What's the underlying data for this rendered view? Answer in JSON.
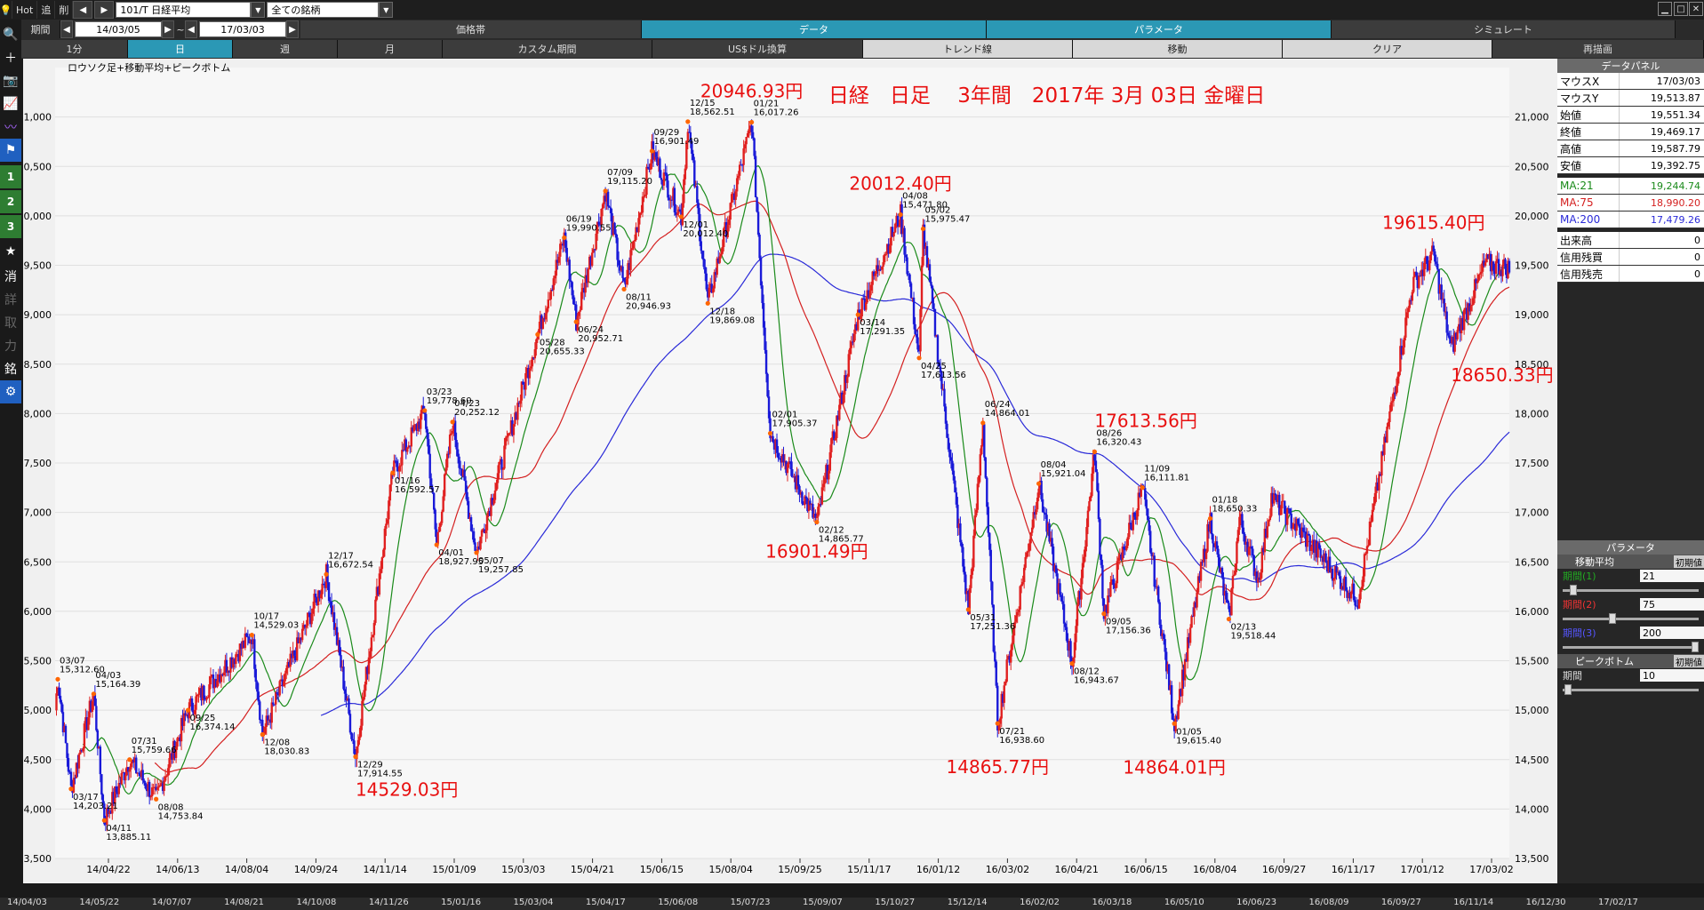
{
  "toolbar": {
    "hot": "Hot",
    "tsui": "追",
    "sakujo": "削",
    "symbol": "101/T 日経平均",
    "universe": "全ての銘柄"
  },
  "date_bar": {
    "period_label": "期間",
    "from": "14/03/05",
    "tilde": "~",
    "to": "17/03/03",
    "tabs": [
      "価格帯",
      "データ",
      "パラメータ",
      "シミュレート"
    ]
  },
  "period_bar": {
    "tabs": [
      "1分",
      "日",
      "週",
      "月",
      "カスタム期間",
      "US$ドル換算",
      "トレンド線",
      "移動",
      "クリア",
      "再描画"
    ]
  },
  "left_bar": {
    "nums": [
      "1",
      "2",
      "3"
    ],
    "kanji": [
      "消",
      "詳",
      "取",
      "力",
      "銘"
    ]
  },
  "colors": {
    "ma21": "#1a8a1a",
    "ma75": "#d42020",
    "ma200": "#2a2ad8",
    "up_candle": "#e02020",
    "down_candle": "#1a1ad8",
    "annotation": "#e81010",
    "peak_dot": "#ff6600"
  },
  "chart_title_small": "ロウソク足+移動平均+ピークボトム",
  "annotation_title": "日経　日足　 3年間　2017年 3月 03日 金曜日",
  "chart_data": {
    "type": "line",
    "y_range": [
      13500,
      21500
    ],
    "yticks": [
      "21,000",
      "20,500",
      "20,000",
      "19,500",
      "19,000",
      "18,500",
      "18,000",
      "17,500",
      "17,000",
      "16,500",
      "16,000",
      "15,500",
      "15,000",
      "14,500",
      "14,000",
      "13,500"
    ],
    "ytick_values": [
      21000,
      20500,
      20000,
      19500,
      19000,
      18500,
      18000,
      17500,
      17000,
      16500,
      16000,
      15500,
      15000,
      14500,
      14000,
      13500
    ],
    "xticks": [
      "14/04/22",
      "14/06/13",
      "14/08/04",
      "14/09/24",
      "14/11/14",
      "15/01/09",
      "15/03/03",
      "15/04/21",
      "15/06/15",
      "15/08/04",
      "15/09/25",
      "15/11/17",
      "16/01/12",
      "16/03/02",
      "16/04/21",
      "16/06/15",
      "16/08/04",
      "16/09/27",
      "16/11/17",
      "17/01/12",
      "17/03/02"
    ],
    "price_path": [
      [
        "14/03/05",
        15000
      ],
      [
        "14/03/07",
        15312.6
      ],
      [
        "14/03/17",
        14203.21
      ],
      [
        "14/04/03",
        15164.39
      ],
      [
        "14/04/11",
        13885.11
      ],
      [
        "14/04/30",
        14500
      ],
      [
        "14/05/20",
        14100
      ],
      [
        "14/06/13",
        15000
      ],
      [
        "14/07/31",
        15759.66
      ],
      [
        "14/08/08",
        14753.84
      ],
      [
        "14/09/25",
        16374.14
      ],
      [
        "14/10/17",
        14529.03
      ],
      [
        "14/11/14",
        17400
      ],
      [
        "14/12/08",
        18030.83
      ],
      [
        "14/12/17",
        16672.54
      ],
      [
        "14/12/29",
        17914.55
      ],
      [
        "15/01/16",
        16592.57
      ],
      [
        "15/03/03",
        18800
      ],
      [
        "15/03/23",
        19778.6
      ],
      [
        "15/04/01",
        18927.95
      ],
      [
        "15/04/23",
        20252.12
      ],
      [
        "15/05/07",
        19257.85
      ],
      [
        "15/05/28",
        20655.33
      ],
      [
        "15/06/19",
        19990.55
      ],
      [
        "15/06/24",
        20952.71
      ],
      [
        "15/07/09",
        19115.2
      ],
      [
        "15/08/11",
        20946.93
      ],
      [
        "15/08/25",
        17800
      ],
      [
        "15/09/29",
        16901.49
      ],
      [
        "15/10/30",
        19000
      ],
      [
        "15/12/01",
        20012.4
      ],
      [
        "15/12/15",
        18562.51
      ],
      [
        "15/12/18",
        19869.08
      ],
      [
        "16/01/21",
        16017.26
      ],
      [
        "16/02/01",
        17905.37
      ],
      [
        "16/02/12",
        14865.77
      ],
      [
        "16/03/14",
        17291.35
      ],
      [
        "16/04/08",
        15471.8
      ],
      [
        "16/04/25",
        17613.56
      ],
      [
        "16/05/02",
        15975.47
      ],
      [
        "16/05/31",
        17251.36
      ],
      [
        "16/06/24",
        14864.01
      ],
      [
        "16/07/21",
        16938.6
      ],
      [
        "16/08/04",
        15921.04
      ],
      [
        "16/08/12",
        16943.67
      ],
      [
        "16/08/26",
        16320.43
      ],
      [
        "16/09/05",
        17156.36
      ],
      [
        "16/11/09",
        16111.81
      ],
      [
        "16/12/20",
        19300
      ],
      [
        "17/01/05",
        19615.4
      ],
      [
        "17/01/18",
        18650.33
      ],
      [
        "17/02/13",
        19518.44
      ],
      [
        "17/03/03",
        19469.17
      ]
    ],
    "peak_labels": [
      [
        "03/07",
        "15,312.60"
      ],
      [
        "03/17",
        "14,203.21"
      ],
      [
        "04/03",
        "15,164.39"
      ],
      [
        "04/11",
        "13,885.11"
      ],
      [
        "07/31",
        "15,759.66"
      ],
      [
        "08/08",
        "14,753.84"
      ],
      [
        "09/25",
        "16,374.14"
      ],
      [
        "10/17",
        "14,529.03"
      ],
      [
        "12/08",
        "18,030.83"
      ],
      [
        "12/17",
        "16,672.54"
      ],
      [
        "12/29",
        "17,914.55"
      ],
      [
        "01/16",
        "16,592.57"
      ],
      [
        "03/23",
        "19,778.60"
      ],
      [
        "04/01",
        "18,927.95"
      ],
      [
        "04/23",
        "20,252.12"
      ],
      [
        "05/07",
        "19,257.85"
      ],
      [
        "05/28",
        "20,655.33"
      ],
      [
        "06/19",
        "19,990.55"
      ],
      [
        "06/24",
        "20,952.71"
      ],
      [
        "07/09",
        "19,115.20"
      ],
      [
        "08/11",
        "20,946.93"
      ],
      [
        "09/29",
        "16,901.49"
      ],
      [
        "12/01",
        "20,012.40"
      ],
      [
        "12/15",
        "18,562.51"
      ],
      [
        "12/18",
        "19,869.08"
      ],
      [
        "01/21",
        "16,017.26"
      ],
      [
        "02/01",
        "17,905.37"
      ],
      [
        "02/12",
        "14,865.77"
      ],
      [
        "03/14",
        "17,291.35"
      ],
      [
        "04/08",
        "15,471.80"
      ],
      [
        "04/25",
        "17,613.56"
      ],
      [
        "05/02",
        "15,975.47"
      ],
      [
        "05/31",
        "17,251.36"
      ],
      [
        "06/24",
        "14,864.01"
      ],
      [
        "07/21",
        "16,938.60"
      ],
      [
        "08/04",
        "15,921.04"
      ],
      [
        "08/12",
        "16,943.67"
      ],
      [
        "08/26",
        "16,320.43"
      ],
      [
        "09/05",
        "17,156.36"
      ],
      [
        "11/09",
        "16,111.81"
      ],
      [
        "01/05",
        "19,615.40"
      ],
      [
        "01/18",
        "18,650.33"
      ],
      [
        "02/13",
        "19,518.44"
      ]
    ],
    "big_annotations": [
      "20946.93円",
      "20012.40円",
      "17613.56円",
      "19615.40円",
      "16901.49円",
      "18650.33円",
      "14529.03円",
      "14865.77円",
      "14864.01円"
    ],
    "ma": [
      {
        "name": "MA:21",
        "period": 21
      },
      {
        "name": "MA:75",
        "period": 75
      },
      {
        "name": "MA:200",
        "period": 200
      }
    ]
  },
  "data_panel": {
    "title": "データパネル",
    "rows": [
      {
        "label": "マウスX",
        "value": "17/03/03"
      },
      {
        "label": "マウスY",
        "value": "19,513.87"
      },
      {
        "label": "始値",
        "value": "19,551.34"
      },
      {
        "label": "終値",
        "value": "19,469.17"
      },
      {
        "label": "高値",
        "value": "19,587.79"
      },
      {
        "label": "安値",
        "value": "19,392.75"
      },
      {
        "label": "MA:21",
        "value": "19,244.74"
      },
      {
        "label": "MA:75",
        "value": "18,990.20"
      },
      {
        "label": "MA:200",
        "value": "17,479.26"
      },
      {
        "label": "出来高",
        "value": "0"
      },
      {
        "label": "信用残買",
        "value": "0"
      },
      {
        "label": "信用残売",
        "value": "0"
      }
    ]
  },
  "param_panel": {
    "title": "パラメータ",
    "ma_section": "移動平均",
    "reset": "初期値",
    "period1_label": "期間(1)",
    "period1": "21",
    "period2_label": "期間(2)",
    "period2": "75",
    "period3_label": "期間(3)",
    "period3": "200",
    "pb_section": "ピークボトム",
    "pb_label": "期間",
    "pb_value": "10"
  },
  "bottom_dates": [
    "14/04/03",
    "14/05/22",
    "14/07/07",
    "14/08/21",
    "14/10/08",
    "14/11/26",
    "15/01/16",
    "15/03/04",
    "15/04/17",
    "15/06/08",
    "15/07/23",
    "15/09/07",
    "15/10/27",
    "15/12/14",
    "16/02/02",
    "16/03/18",
    "16/05/10",
    "16/06/23",
    "16/08/09",
    "16/09/27",
    "16/11/14",
    "16/12/30",
    "17/02/17"
  ]
}
